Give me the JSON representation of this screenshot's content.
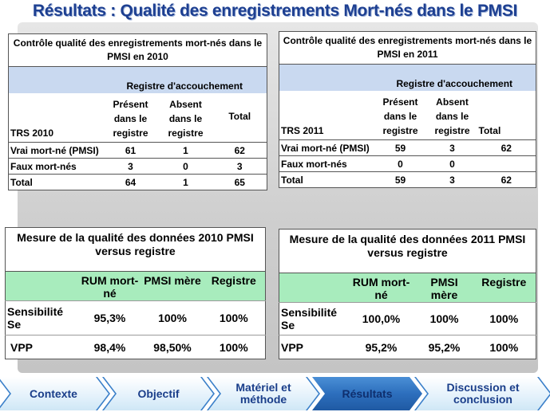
{
  "title": "Résultats : Qualité des  enregistrements  Mort-nés dans le PMSI",
  "table2010": {
    "caption": "Contrôle qualité des enregistrements mort-nés dans le PMSI en 2010",
    "registre_header": "Registre d'accouchement",
    "col_trs": "TRS 2010",
    "col_present": "Présent dans le registre",
    "col_absent": "Absent dans le registre",
    "col_total": "Total",
    "rows": [
      {
        "label": "Vrai mort-né (PMSI)",
        "present": "61",
        "absent": "1",
        "total": "62"
      },
      {
        "label": "Faux mort-nés",
        "present": "3",
        "absent": "0",
        "total": "3"
      },
      {
        "label": "Total",
        "present": "64",
        "absent": "1",
        "total": "65"
      }
    ]
  },
  "table2011": {
    "caption": "Contrôle qualité des enregistrements mort-nés dans le PMSI en 2011",
    "registre_header": "Registre d'accouchement",
    "col_trs": "TRS 2011",
    "col_present": "Présent dans le registre",
    "col_absent": "Absent dans le registre",
    "col_total": "Total",
    "rows": [
      {
        "label": "Vrai mort-né (PMSI)",
        "present": "59",
        "absent": "3",
        "total": "62"
      },
      {
        "label": "Faux mort-nés",
        "present": "0",
        "absent": "0",
        "total": ""
      },
      {
        "label": "Total",
        "present": "59",
        "absent": "3",
        "total": "62"
      }
    ]
  },
  "quality2010": {
    "caption": "Mesure de la qualité des données 2010 PMSI versus registre",
    "col_rum": "RUM mort-né",
    "col_pmsi": "PMSI mère",
    "col_registre": "Registre",
    "rows": [
      {
        "label": "Sensibilité Se",
        "rum": "95,3%",
        "pmsi": "100%",
        "registre": "100%"
      },
      {
        "label": "VPP",
        "rum": "98,4%",
        "pmsi": "98,50%",
        "registre": "100%"
      }
    ]
  },
  "quality2011": {
    "caption": "Mesure de la qualité des données 2011 PMSI versus registre",
    "col_rum": "RUM mort-né",
    "col_pmsi": "PMSI mère",
    "col_registre": "Registre",
    "rows": [
      {
        "label": "Sensibilité Se",
        "rum": "100,0%",
        "pmsi": "100%",
        "registre": "100%"
      },
      {
        "label": "VPP",
        "rum": "95,2%",
        "pmsi": "95,2%",
        "registre": "100%"
      }
    ]
  },
  "nav": {
    "items": [
      {
        "label": "Contexte"
      },
      {
        "label": "Objectif"
      },
      {
        "label": "Matériel et méthode"
      },
      {
        "label": "Résultats"
      },
      {
        "label": "Discussion et conclusion"
      }
    ],
    "active": "Résultats"
  },
  "colors": {
    "title": "#1d3f91",
    "band_blue": "#c9d9f0",
    "band_green": "#a8ecbd",
    "nav_active": "#2d6fbd"
  }
}
